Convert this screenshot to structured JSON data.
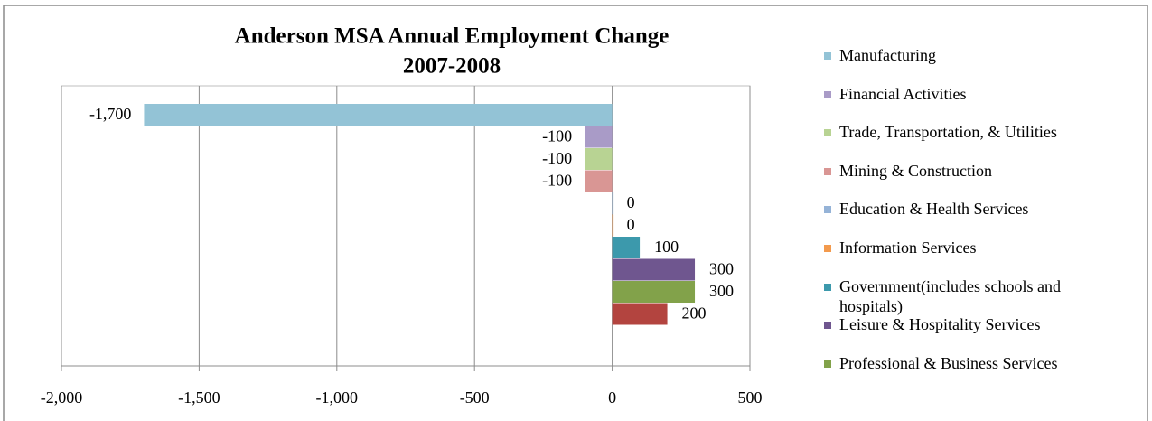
{
  "chart_data": {
    "type": "bar",
    "orientation": "horizontal",
    "title": [
      "Anderson MSA Annual Employment Change",
      "2007-2008"
    ],
    "series": [
      {
        "name": "Manufacturing",
        "color": "#93c3d6",
        "values": [
          -1700
        ],
        "value_labels": [
          "-1,700"
        ]
      },
      {
        "name": "Financial Activities",
        "color": "#a99bc7",
        "values": [
          -100
        ],
        "value_labels": [
          "-100"
        ]
      },
      {
        "name": "Trade, Transportation, & Utilities",
        "color": "#b8d393",
        "values": [
          -100
        ],
        "value_labels": [
          "-100"
        ]
      },
      {
        "name": "Mining & Construction",
        "color": "#d99694",
        "values": [
          -100
        ],
        "value_labels": [
          "-100"
        ]
      },
      {
        "name": "Education & Health Services",
        "color": "#95b3d7",
        "values": [
          0
        ],
        "value_labels": [
          "0"
        ]
      },
      {
        "name": "Information Services",
        "color": "#f39a4d",
        "values": [
          0
        ],
        "value_labels": [
          "0"
        ]
      },
      {
        "name": "Government(includes schools and hospitals)",
        "color": "#3c99ac",
        "values": [
          100
        ],
        "value_labels": [
          "100"
        ]
      },
      {
        "name": "Leisure & Hospitality Services",
        "color": "#6f568f",
        "values": [
          300
        ],
        "value_labels": [
          "300"
        ]
      },
      {
        "name": "Professional & Business Services",
        "color": "#82a24a",
        "values": [
          300
        ],
        "value_labels": [
          "300"
        ]
      },
      {
        "name": null,
        "color": "#b3443f",
        "values": [
          200
        ],
        "value_labels": [
          "200"
        ]
      }
    ],
    "xlim": [
      -2000,
      500
    ],
    "xticks": [
      {
        "value": -2000,
        "label": "-2,000"
      },
      {
        "value": -1500,
        "label": "-1,500"
      },
      {
        "value": -1000,
        "label": "-1,000"
      },
      -500,
      0,
      500
    ],
    "grid": true,
    "legend": "right"
  }
}
